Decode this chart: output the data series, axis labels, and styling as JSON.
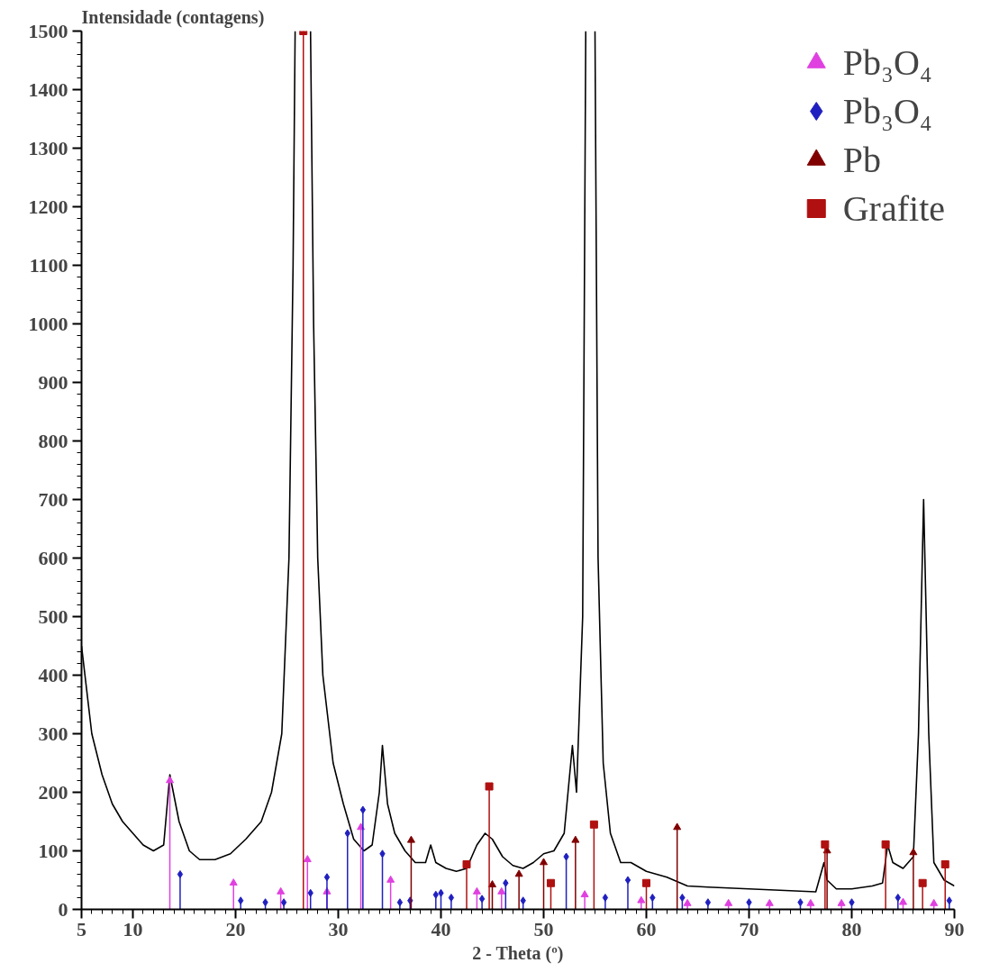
{
  "chart_data": {
    "type": "line",
    "xlabel": "2 - Theta (º)",
    "ylabel": "Intensidade (contagens)",
    "xlim": [
      5,
      90
    ],
    "ylim": [
      0,
      1500
    ],
    "xticks": [
      5,
      10,
      20,
      30,
      40,
      50,
      60,
      70,
      80,
      90
    ],
    "yticks": [
      0,
      100,
      200,
      300,
      400,
      500,
      600,
      700,
      800,
      900,
      1000,
      1100,
      1200,
      1300,
      1400,
      1500
    ],
    "grid": false,
    "legend": "top right",
    "series": [
      {
        "color": "#000000",
        "marker": "none",
        "x": [
          5,
          6,
          7,
          8,
          9,
          10,
          11,
          12,
          13,
          13.6,
          14.5,
          15.5,
          16.5,
          18,
          19.5,
          21,
          22.5,
          23.5,
          24.5,
          25.2,
          25.6,
          25.8,
          26.5,
          27.3,
          27.6,
          28,
          28.5,
          29.5,
          30.5,
          31.5,
          32.5,
          33.3,
          34.0,
          34.3,
          34.8,
          35.5,
          36.5,
          37.5,
          38.5,
          39,
          39.5,
          40.5,
          41.5,
          42.5,
          43.5,
          44.3,
          45,
          46,
          47,
          48,
          49,
          50,
          51,
          52,
          52.8,
          53.2,
          53.8,
          54.1,
          54.5,
          55.0,
          55.3,
          55.8,
          56.5,
          57.5,
          58.5,
          60,
          62,
          64,
          66,
          70,
          74,
          76.5,
          77.3,
          77.6,
          78.5,
          80,
          82,
          83,
          83.5,
          84,
          85,
          86,
          86.5,
          87,
          87.5,
          88,
          89,
          90
        ],
        "values": [
          450,
          300,
          230,
          180,
          150,
          130,
          110,
          100,
          110,
          230,
          150,
          100,
          85,
          85,
          95,
          120,
          150,
          200,
          300,
          600,
          1100,
          1500,
          null,
          1500,
          1000,
          600,
          400,
          250,
          180,
          120,
          100,
          110,
          200,
          280,
          180,
          130,
          100,
          80,
          80,
          110,
          80,
          70,
          65,
          70,
          110,
          130,
          120,
          90,
          75,
          70,
          80,
          95,
          100,
          130,
          280,
          200,
          500,
          1500,
          null,
          1500,
          600,
          250,
          130,
          80,
          80,
          65,
          55,
          40,
          38,
          35,
          32,
          30,
          80,
          50,
          35,
          35,
          40,
          45,
          110,
          80,
          70,
          90,
          300,
          700,
          300,
          80,
          50,
          40
        ]
      },
      {
        "type": "lollipop",
        "name": "Pb₃O₄",
        "color": "#e040e0",
        "marker": "triangle",
        "x": [
          13.6,
          19.8,
          24.4,
          27.0,
          28.9,
          32.2,
          35.1,
          43.5,
          45.9,
          54.0,
          59.5,
          64,
          68,
          72,
          76,
          79,
          85,
          88
        ],
        "values": [
          220,
          45,
          30,
          85,
          30,
          140,
          50,
          30,
          30,
          25,
          15,
          10,
          10,
          10,
          10,
          10,
          12,
          10
        ]
      },
      {
        "type": "lollipop",
        "name": "Pb₃O₄",
        "color": "#2020c0",
        "marker": "diamond",
        "x": [
          14.6,
          20.5,
          22.9,
          24.7,
          27.3,
          28.9,
          30.9,
          32.4,
          34.3,
          36,
          37,
          39.5,
          40,
          41,
          44,
          46.3,
          48,
          52.2,
          56,
          58.2,
          60.6,
          63.5,
          66,
          70,
          75,
          80,
          84.5,
          89.5
        ],
        "values": [
          60,
          15,
          12,
          12,
          28,
          55,
          130,
          170,
          95,
          12,
          15,
          25,
          28,
          20,
          18,
          45,
          15,
          90,
          20,
          50,
          20,
          20,
          12,
          12,
          12,
          12,
          20,
          15
        ]
      },
      {
        "type": "lollipop",
        "name": "Pb",
        "color": "#800000",
        "marker": "triangle",
        "x": [
          37.1,
          45.0,
          47.6,
          50.0,
          53.1,
          63.0,
          77.6,
          86.0
        ],
        "values": [
          118,
          42,
          60,
          80,
          118,
          140,
          100,
          97
        ]
      },
      {
        "type": "lollipop",
        "name": "Grafite",
        "color": "#b01010",
        "marker": "square",
        "x": [
          26.6,
          42.5,
          44.7,
          50.7,
          54.9,
          60.0,
          77.4,
          83.3,
          86.9,
          89.1
        ],
        "values": [
          1500,
          77,
          210,
          45,
          145,
          45,
          111,
          111,
          45,
          77
        ]
      }
    ]
  }
}
